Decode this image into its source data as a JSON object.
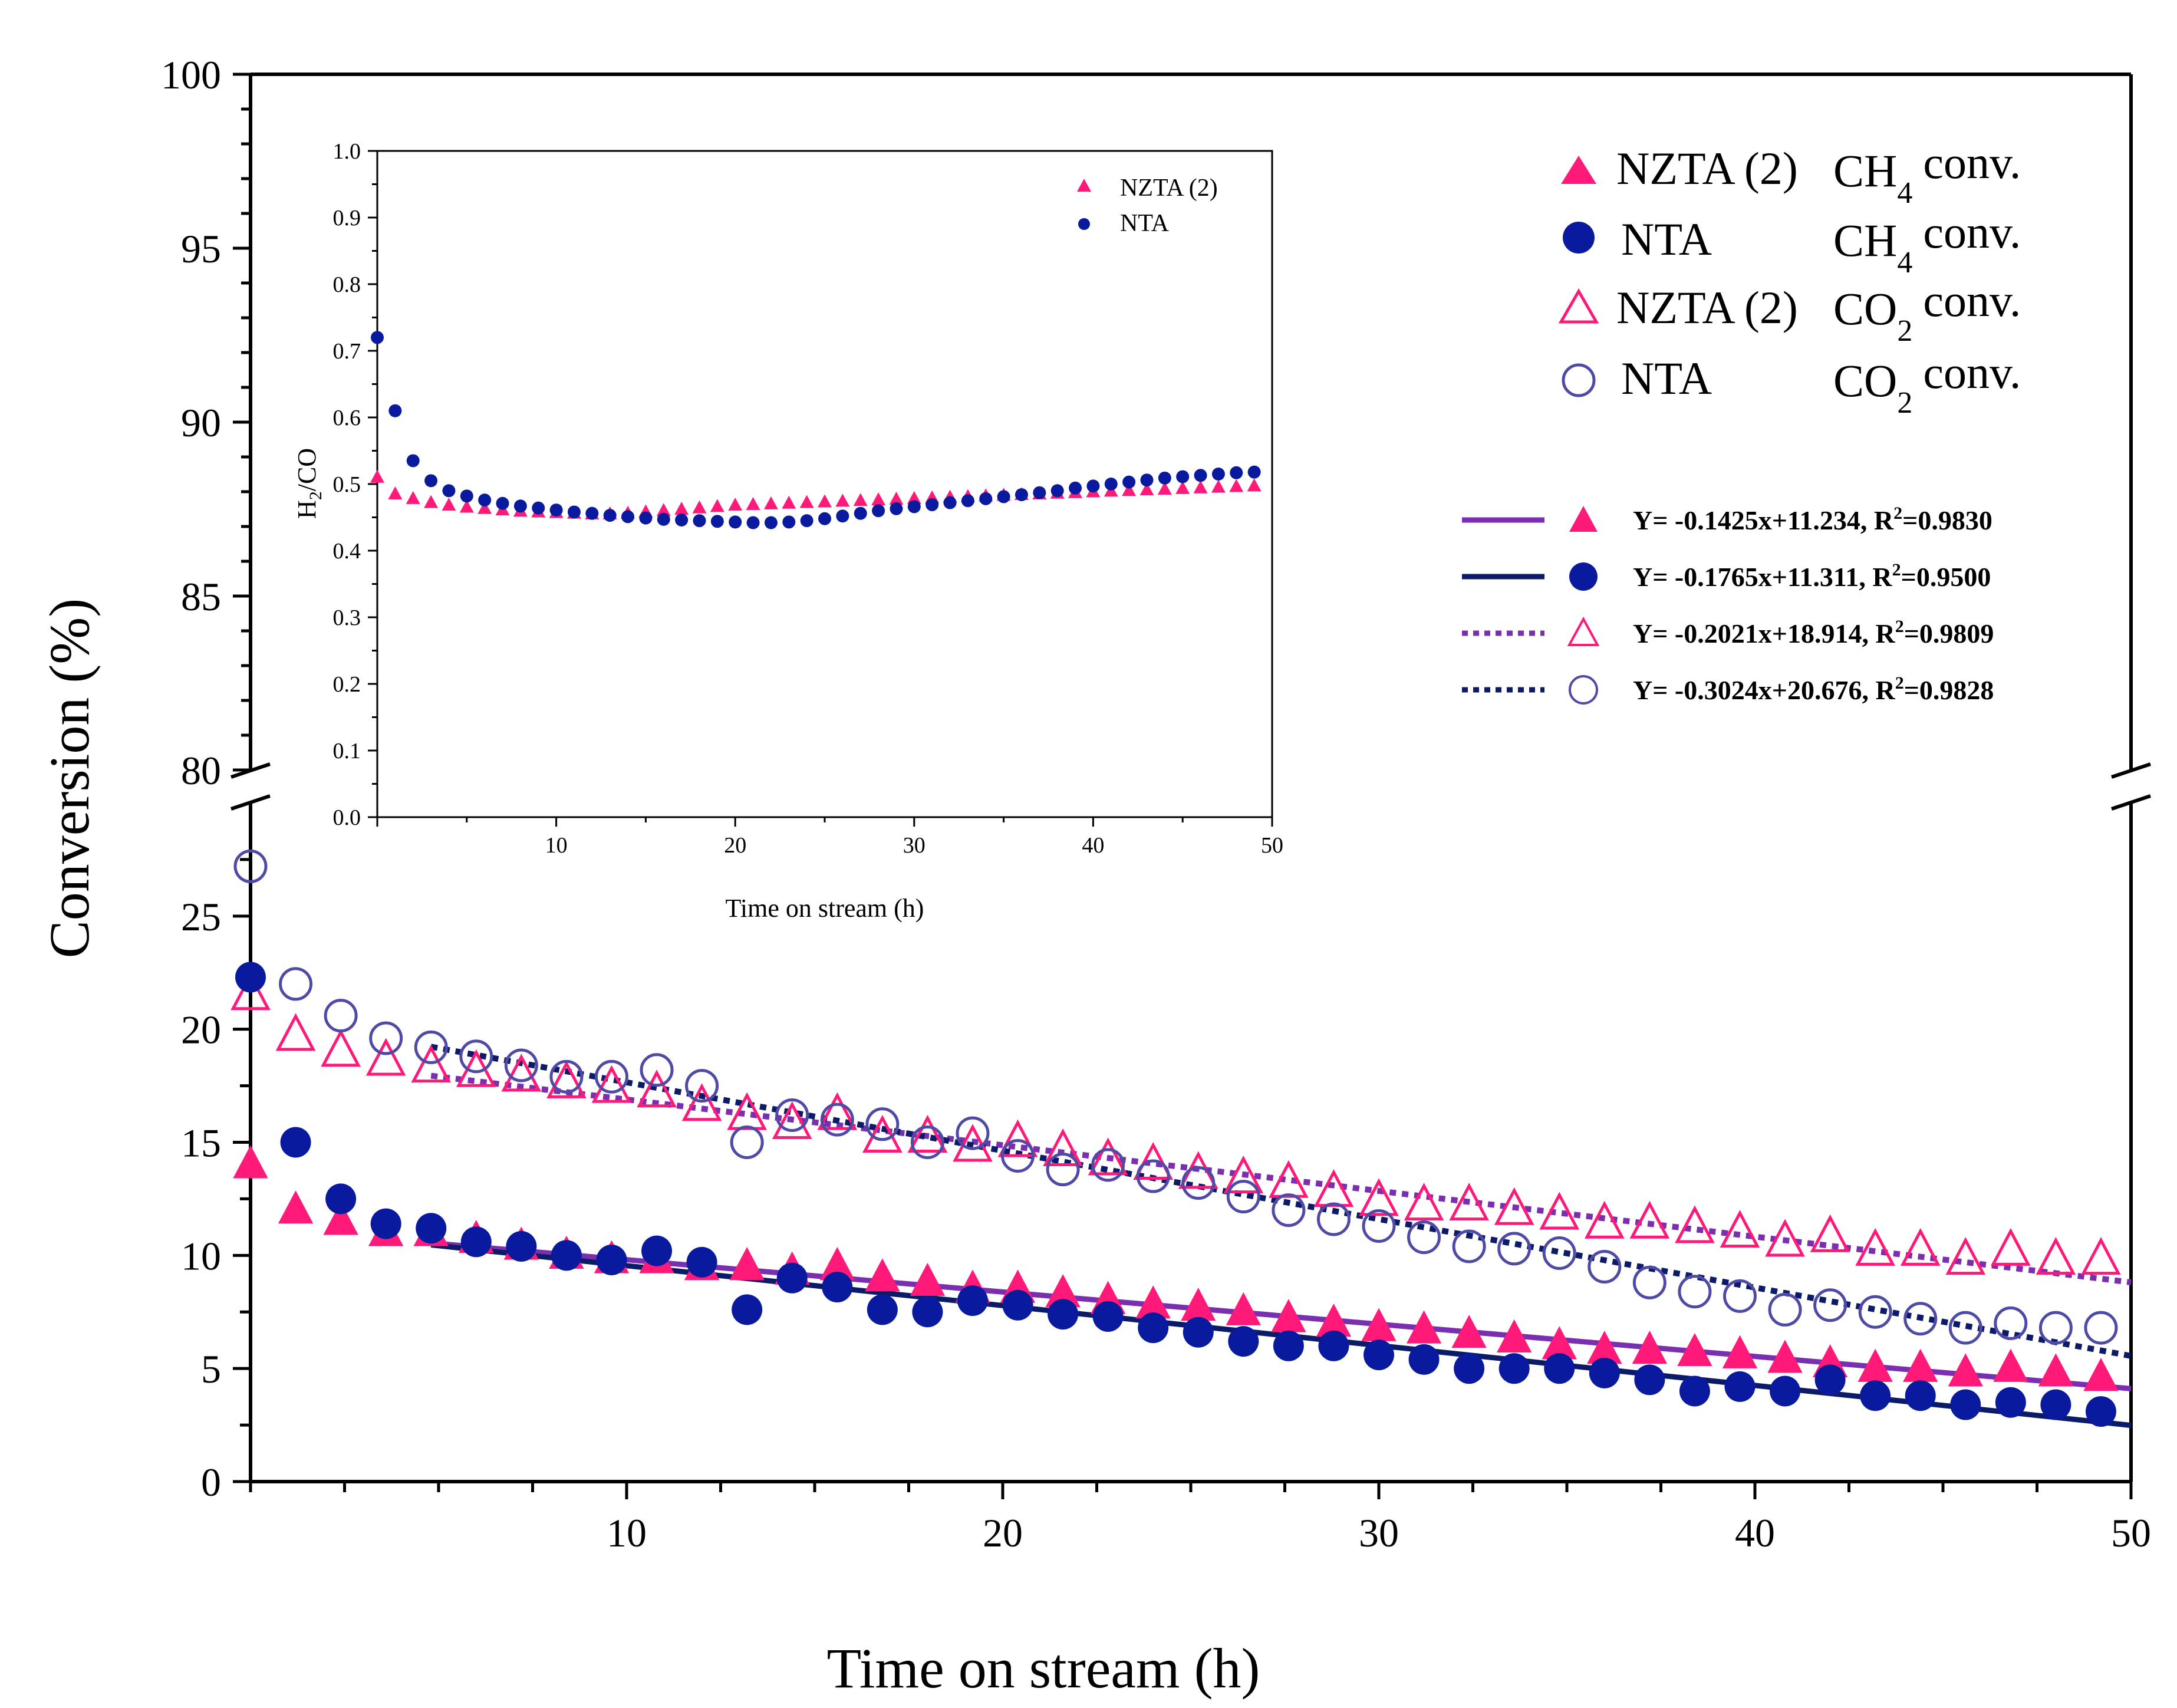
{
  "colors": {
    "nzta": "#ff1a7a",
    "nta": "#0a1a9e",
    "nta_open": "#4e4aa6",
    "fit_nzta": "#7a2fb0",
    "fit_nta": "#0c1b68"
  },
  "chart_data": [
    {
      "type": "scatter",
      "id": "main",
      "title": "",
      "xlabel": "Time on stream (h)",
      "ylabel": "Conversion (%)",
      "xlim": [
        0,
        50
      ],
      "ylim_lower": [
        0,
        30
      ],
      "ylim_upper": [
        80,
        100
      ],
      "axis_break": "between 30 and 80",
      "x_ticks": [
        "10",
        "20",
        "30",
        "40",
        "50"
      ],
      "y_ticks_lower": [
        "0",
        "5",
        "10",
        "15",
        "20",
        "25"
      ],
      "y_ticks_upper": [
        "80",
        "85",
        "90",
        "95",
        "100"
      ],
      "legend_position": "top-right",
      "series": [
        {
          "name": "NZTA (2) CH4 conv.",
          "legend_sample": "NZTA (2)",
          "legend_species": "CH",
          "legend_subscript": "4",
          "legend_suffix": "conv.",
          "marker": "filled-triangle",
          "color": "nzta",
          "x": [
            0,
            1.2,
            2.4,
            3.6,
            4.8,
            6.0,
            7.2,
            8.4,
            9.6,
            10.8,
            12.0,
            13.2,
            14.4,
            15.6,
            16.8,
            18.0,
            19.2,
            20.4,
            21.6,
            22.8,
            24.0,
            25.2,
            26.4,
            27.6,
            28.8,
            30.0,
            31.2,
            32.4,
            33.6,
            34.8,
            36.0,
            37.2,
            38.4,
            39.6,
            40.8,
            42.0,
            43.2,
            44.4,
            45.6,
            46.8,
            48.0,
            49.2
          ],
          "y": [
            14.0,
            12.0,
            11.5,
            11.0,
            11.0,
            10.7,
            10.4,
            10.0,
            9.8,
            9.8,
            9.5,
            9.5,
            9.3,
            9.5,
            9.0,
            8.8,
            8.5,
            8.5,
            8.3,
            8.0,
            7.8,
            7.7,
            7.5,
            7.2,
            7.0,
            6.8,
            6.7,
            6.5,
            6.3,
            6.0,
            5.8,
            5.8,
            5.7,
            5.6,
            5.4,
            5.2,
            5.0,
            5.0,
            4.8,
            5.0,
            4.8,
            4.6
          ]
        },
        {
          "name": "NTA CH4 conv.",
          "legend_sample": "NTA",
          "legend_species": "CH",
          "legend_subscript": "4",
          "legend_suffix": "conv.",
          "marker": "filled-circle",
          "color": "nta",
          "x": [
            0,
            1.2,
            2.4,
            3.6,
            4.8,
            6.0,
            7.2,
            8.4,
            9.6,
            10.8,
            12.0,
            13.2,
            14.4,
            15.6,
            16.8,
            18.0,
            19.2,
            20.4,
            21.6,
            22.8,
            24.0,
            25.2,
            26.4,
            27.6,
            28.8,
            30.0,
            31.2,
            32.4,
            33.6,
            34.8,
            36.0,
            37.2,
            38.4,
            39.6,
            40.8,
            42.0,
            43.2,
            44.4,
            45.6,
            46.8,
            48.0,
            49.2
          ],
          "y": [
            22.3,
            15.0,
            12.5,
            11.4,
            11.2,
            10.6,
            10.4,
            10.0,
            9.8,
            10.2,
            9.7,
            7.6,
            9.0,
            8.6,
            7.6,
            7.5,
            8.0,
            7.8,
            7.4,
            7.3,
            6.8,
            6.6,
            6.2,
            6.0,
            6.0,
            5.6,
            5.4,
            5.0,
            5.0,
            5.0,
            4.8,
            4.5,
            4.0,
            4.2,
            4.0,
            4.5,
            3.8,
            3.8,
            3.4,
            3.5,
            3.4,
            3.1
          ]
        },
        {
          "name": "NZTA (2) CO2 conv.",
          "legend_sample": "NZTA (2)",
          "legend_species": "CO",
          "legend_subscript": "2",
          "legend_suffix": "conv.",
          "marker": "open-triangle",
          "color": "nzta",
          "x": [
            0,
            1.2,
            2.4,
            3.6,
            4.8,
            6.0,
            7.2,
            8.4,
            9.6,
            10.8,
            12.0,
            13.2,
            14.4,
            15.6,
            16.8,
            18.0,
            19.2,
            20.4,
            21.6,
            22.8,
            24.0,
            25.2,
            26.4,
            27.6,
            28.8,
            30.0,
            31.2,
            32.4,
            33.6,
            34.8,
            36.0,
            37.2,
            38.4,
            39.6,
            40.8,
            42.0,
            43.2,
            44.4,
            45.6,
            46.8,
            48.0,
            49.2
          ],
          "y": [
            21.5,
            19.7,
            19.0,
            18.6,
            18.3,
            18.1,
            17.9,
            17.6,
            17.4,
            17.2,
            16.6,
            16.2,
            15.8,
            16.2,
            15.2,
            15.2,
            14.8,
            15.0,
            14.6,
            14.2,
            14.0,
            13.6,
            13.4,
            13.2,
            12.8,
            12.4,
            12.2,
            12.2,
            12.0,
            11.8,
            11.4,
            11.4,
            11.2,
            11.0,
            10.6,
            10.8,
            10.2,
            10.2,
            9.8,
            10.2,
            9.8,
            9.8
          ]
        },
        {
          "name": "NTA CO2 conv.",
          "legend_sample": "NTA",
          "legend_species": "CO",
          "legend_subscript": "2",
          "legend_suffix": "conv.",
          "marker": "open-circle",
          "color": "nta_open",
          "x": [
            0,
            1.2,
            2.4,
            3.6,
            4.8,
            6.0,
            7.2,
            8.4,
            9.6,
            10.8,
            12.0,
            13.2,
            14.4,
            15.6,
            16.8,
            18.0,
            19.2,
            20.4,
            21.6,
            22.8,
            24.0,
            25.2,
            26.4,
            27.6,
            28.8,
            30.0,
            31.2,
            32.4,
            33.6,
            34.8,
            36.0,
            37.2,
            38.4,
            39.6,
            40.8,
            42.0,
            43.2,
            44.4,
            45.6,
            46.8,
            48.0,
            49.2
          ],
          "y": [
            27.2,
            22.0,
            20.6,
            19.6,
            19.2,
            18.8,
            18.4,
            17.9,
            17.9,
            18.2,
            17.5,
            15.0,
            16.2,
            16.0,
            15.8,
            15.0,
            15.4,
            14.4,
            13.8,
            14.0,
            13.5,
            13.2,
            12.6,
            12.0,
            11.6,
            11.3,
            10.8,
            10.4,
            10.3,
            10.1,
            9.5,
            8.8,
            8.4,
            8.2,
            7.6,
            7.8,
            7.5,
            7.2,
            6.8,
            7.0,
            6.8,
            6.8
          ]
        }
      ],
      "fits": [
        {
          "equation": "Y= -0.1425x+11.234, R",
          "sup": "2",
          "r2": "=0.9830",
          "slope": -0.1425,
          "intercept": 11.234,
          "x_range": [
            4.8,
            50
          ],
          "line_style": "solid",
          "color": "fit_nzta",
          "marker": "filled-triangle",
          "marker_color": "nzta"
        },
        {
          "equation": "Y= -0.1765x+11.311, R",
          "sup": "2",
          "r2": "=0.9500",
          "slope": -0.1765,
          "intercept": 11.311,
          "x_range": [
            4.8,
            50
          ],
          "line_style": "solid",
          "color": "fit_nta",
          "marker": "filled-circle",
          "marker_color": "nta"
        },
        {
          "equation": "Y= -0.2021x+18.914, R",
          "sup": "2",
          "r2": "=0.9809",
          "slope": -0.2021,
          "intercept": 18.914,
          "x_range": [
            4.8,
            50
          ],
          "line_style": "dotted",
          "color": "fit_nzta",
          "marker": "open-triangle",
          "marker_color": "nzta"
        },
        {
          "equation": "Y= -0.3024x+20.676, R",
          "sup": "2",
          "r2": "=0.9828",
          "slope": -0.3024,
          "intercept": 20.676,
          "x_range": [
            4.8,
            50
          ],
          "line_style": "dotted",
          "color": "fit_nta",
          "marker": "open-circle",
          "marker_color": "nta_open"
        }
      ]
    },
    {
      "type": "scatter",
      "id": "inset",
      "title": "",
      "xlabel": "Time on stream (h)",
      "ylabel_main": "H",
      "ylabel_sub": "2",
      "ylabel_tail": "/CO",
      "xlim": [
        0,
        50
      ],
      "ylim": [
        0,
        1.0
      ],
      "x_ticks": [
        "10",
        "20",
        "30",
        "40",
        "50"
      ],
      "y_ticks": [
        "0.0",
        "0.1",
        "0.2",
        "0.3",
        "0.4",
        "0.5",
        "0.6",
        "0.7",
        "0.8",
        "0.9",
        "1.0"
      ],
      "legend_position": "top-right",
      "series": [
        {
          "name": "NZTA (2)",
          "marker": "filled-triangle",
          "color": "nzta",
          "x": [
            0,
            1,
            2,
            3,
            4,
            5,
            6,
            7,
            8,
            9,
            10,
            11,
            12,
            13,
            14,
            15,
            16,
            17,
            18,
            19,
            20,
            21,
            22,
            23,
            24,
            25,
            26,
            27,
            28,
            29,
            30,
            31,
            32,
            33,
            34,
            35,
            36,
            37,
            38,
            39,
            40,
            41,
            42,
            43,
            44,
            45,
            46,
            47,
            48,
            49
          ],
          "y": [
            0.51,
            0.485,
            0.478,
            0.472,
            0.468,
            0.465,
            0.463,
            0.461,
            0.459,
            0.458,
            0.457,
            0.456,
            0.455,
            0.455,
            0.456,
            0.458,
            0.46,
            0.462,
            0.464,
            0.466,
            0.468,
            0.469,
            0.47,
            0.471,
            0.472,
            0.473,
            0.474,
            0.475,
            0.476,
            0.477,
            0.478,
            0.479,
            0.48,
            0.481,
            0.482,
            0.483,
            0.484,
            0.485,
            0.486,
            0.487,
            0.488,
            0.489,
            0.49,
            0.491,
            0.492,
            0.493,
            0.494,
            0.495,
            0.496,
            0.497
          ]
        },
        {
          "name": "NTA",
          "marker": "filled-circle",
          "color": "nta",
          "x": [
            0,
            1,
            2,
            3,
            4,
            5,
            6,
            7,
            8,
            9,
            10,
            11,
            12,
            13,
            14,
            15,
            16,
            17,
            18,
            19,
            20,
            21,
            22,
            23,
            24,
            25,
            26,
            27,
            28,
            29,
            30,
            31,
            32,
            33,
            34,
            35,
            36,
            37,
            38,
            39,
            40,
            41,
            42,
            43,
            44,
            45,
            46,
            47,
            48,
            49
          ],
          "y": [
            0.72,
            0.61,
            0.535,
            0.505,
            0.49,
            0.482,
            0.476,
            0.471,
            0.467,
            0.464,
            0.461,
            0.458,
            0.456,
            0.453,
            0.451,
            0.449,
            0.447,
            0.446,
            0.445,
            0.444,
            0.443,
            0.442,
            0.442,
            0.443,
            0.445,
            0.448,
            0.452,
            0.456,
            0.46,
            0.463,
            0.466,
            0.469,
            0.472,
            0.475,
            0.478,
            0.481,
            0.484,
            0.487,
            0.49,
            0.494,
            0.497,
            0.5,
            0.503,
            0.506,
            0.509,
            0.511,
            0.513,
            0.515,
            0.517,
            0.518
          ]
        }
      ]
    }
  ]
}
